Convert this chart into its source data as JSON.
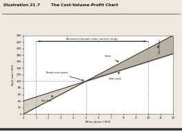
{
  "title_left": "Illustration 21.7",
  "title_right": "The Cost-Volume-Profit Chart",
  "xlabel": "Miles driven ('000)",
  "ylabel": "Total cost ('000)",
  "xlim": [
    0,
    12
  ],
  "ylim": [
    0,
    240
  ],
  "xticks": [
    0,
    1,
    2,
    3,
    4,
    5,
    6,
    7,
    8,
    9,
    10,
    11,
    12
  ],
  "yticks": [
    0,
    20,
    40,
    60,
    80,
    100,
    120,
    140,
    160,
    180,
    200,
    220,
    240
  ],
  "bg_color": "#ede8de",
  "plot_bg": "#ffffff",
  "net_loss_fill_color": "#d8cfc0",
  "net_income_fill_color": "#b8b0a0",
  "dashed_line_color": "#999999",
  "line_color": "#222222",
  "annotation_color": "#111111",
  "relevant_range_annotation": "Assumed relevant sales volume range",
  "breakeven_annotation": "Break-even point",
  "sales_annotation": "Sales",
  "total_costs_annotation": "Total costs",
  "net_loss_annotation": "Net loss",
  "net_income_annotation": "Net income",
  "sales_slope": 20,
  "total_cost_slope": 12,
  "total_cost_intercept": 40,
  "breakeven_x": 5,
  "breakeven_y": 100,
  "relevant_x1": 1,
  "relevant_x2": 10
}
